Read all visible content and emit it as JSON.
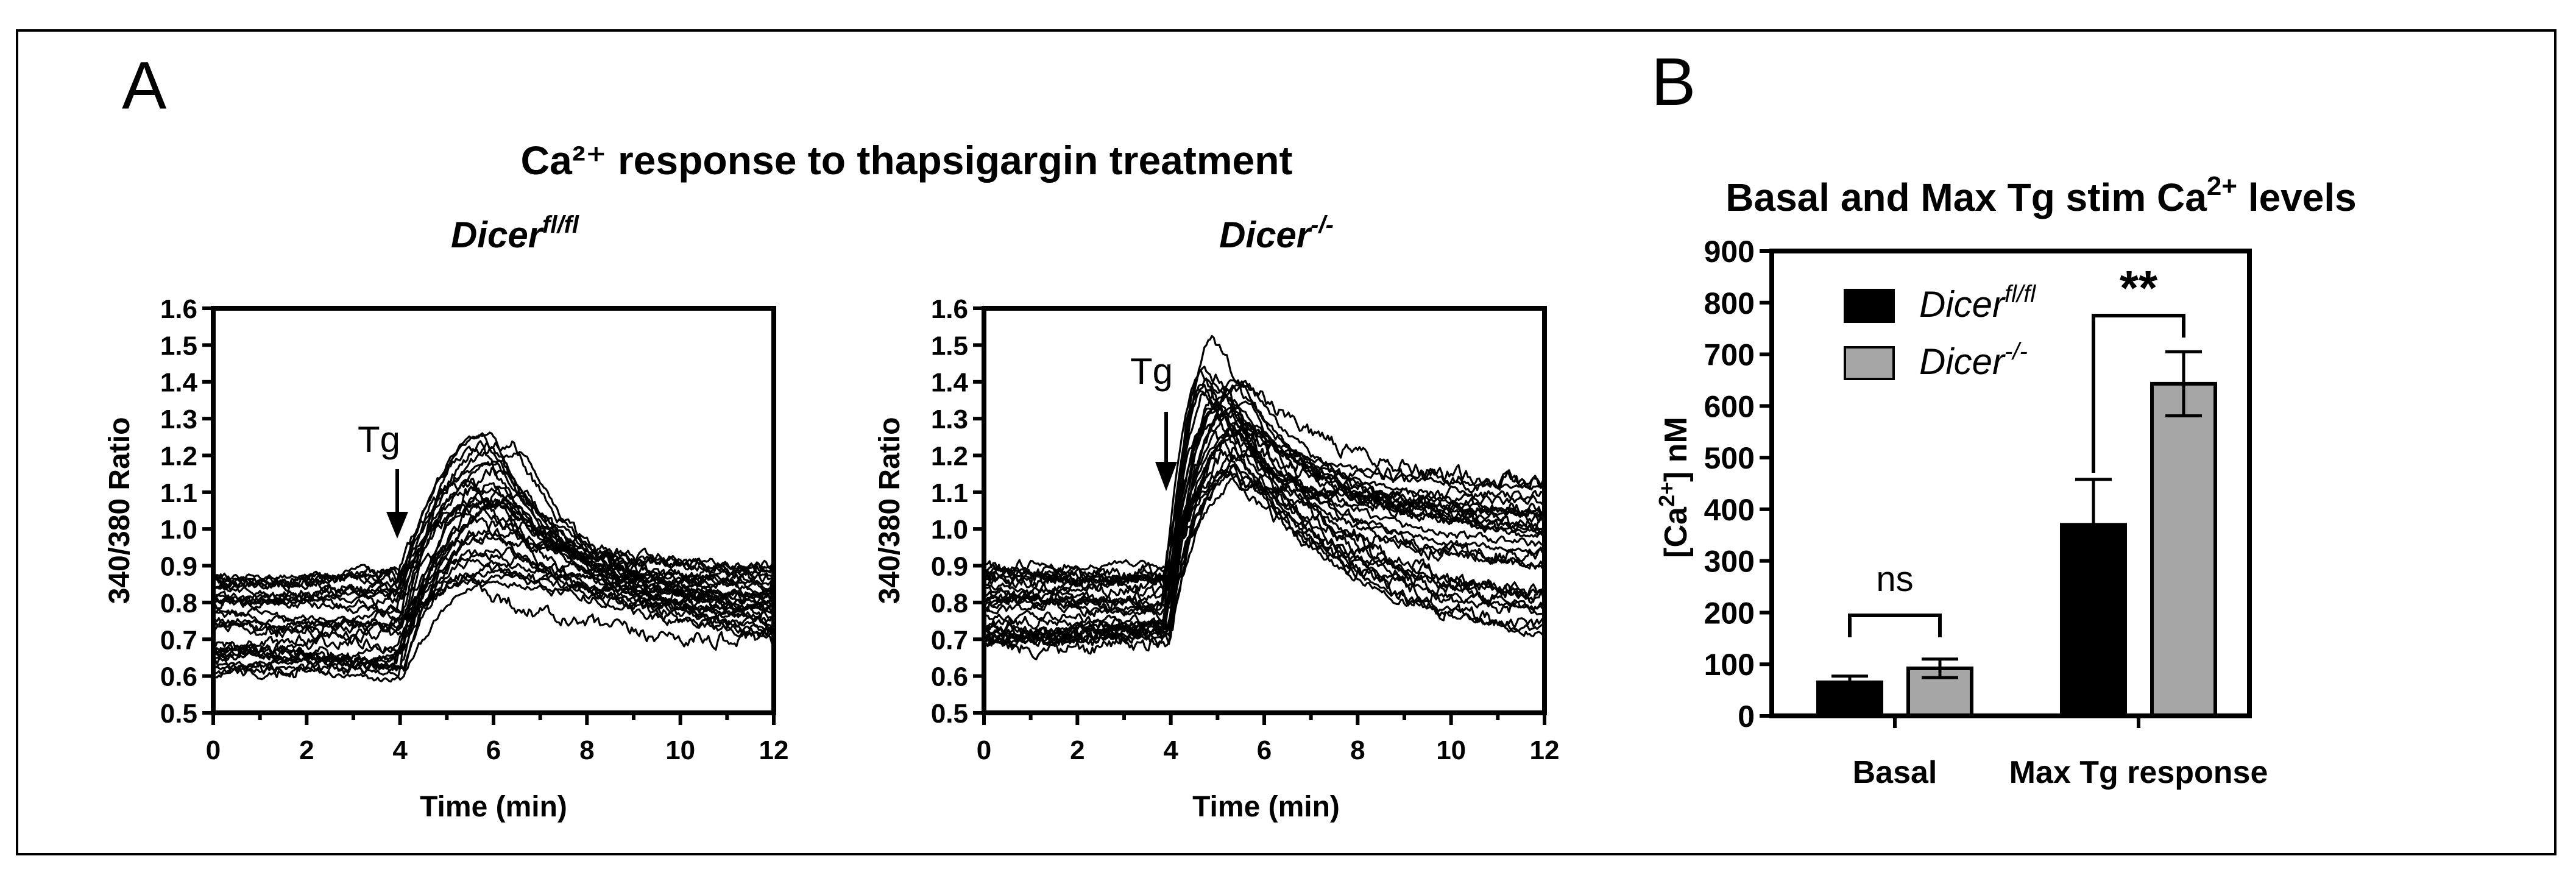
{
  "figure": {
    "panel_a_letter": "A",
    "panel_b_letter": "B",
    "panel_a_title": "Ca²⁺ response to thapsigargin treatment"
  },
  "chart_data": [
    {
      "id": "traces-fl",
      "type": "line",
      "title_main": "Dicer",
      "title_sup": "fl/fl",
      "xlabel": "Time (min)",
      "ylabel": "340/380 Ratio",
      "xlim": [
        0,
        12
      ],
      "ylim": [
        0.5,
        1.6
      ],
      "xticks": [
        0,
        2,
        4,
        6,
        8,
        10,
        12
      ],
      "yticks": [
        0.5,
        0.6,
        0.7,
        0.8,
        0.9,
        1.0,
        1.1,
        1.2,
        1.3,
        1.4,
        1.5,
        1.6
      ],
      "ytick_labels": [
        "0.5",
        "0.6",
        "0.7",
        "0.8",
        "0.9",
        "1.0",
        "1.1",
        "1.2",
        "1.3",
        "1.4",
        "1.5",
        "1.6"
      ],
      "annotation": {
        "text": "Tg",
        "x": 4.0
      },
      "n_traces": 30,
      "trace_model": {
        "t_stim": 4.0,
        "baseline_range": [
          0.6,
          0.87
        ],
        "peak_range": [
          0.85,
          1.27
        ],
        "peak_time_range": [
          5.4,
          6.8
        ],
        "end_range": [
          0.69,
          0.9
        ]
      }
    },
    {
      "id": "traces-ko",
      "type": "line",
      "title_main": "Dicer",
      "title_sup": "-/-",
      "xlabel": "Time (min)",
      "ylabel": "340/380 Ratio",
      "xlim": [
        0,
        12
      ],
      "ylim": [
        0.5,
        1.6
      ],
      "xticks": [
        0,
        2,
        4,
        6,
        8,
        10,
        12
      ],
      "yticks": [
        0.5,
        0.6,
        0.7,
        0.8,
        0.9,
        1.0,
        1.1,
        1.2,
        1.3,
        1.4,
        1.5,
        1.6
      ],
      "ytick_labels": [
        "0.5",
        "0.6",
        "0.7",
        "0.8",
        "0.9",
        "1.0",
        "1.1",
        "1.2",
        "1.3",
        "1.4",
        "1.5",
        "1.6"
      ],
      "annotation": {
        "text": "Tg",
        "x": 3.9
      },
      "n_traces": 30,
      "trace_model": {
        "t_stim": 3.9,
        "baseline_range": [
          0.68,
          0.9
        ],
        "peak_range": [
          1.12,
          1.52
        ],
        "peak_time_range": [
          4.6,
          5.8
        ],
        "end_range": [
          0.71,
          1.13
        ]
      }
    },
    {
      "id": "bars",
      "type": "bar",
      "title": "Basal and Max Tg stim Ca",
      "title_sup": "2+",
      "title_tail": " levels",
      "ylabel_pre": "[Ca",
      "ylabel_sup": "2+",
      "ylabel_post": "] nM",
      "categories": [
        "Basal",
        "Max Tg response"
      ],
      "ylim": [
        0,
        900
      ],
      "yticks": [
        0,
        100,
        200,
        300,
        400,
        500,
        600,
        700,
        800,
        900
      ],
      "series": [
        {
          "name": "Dicer",
          "name_sup": "fl/fl",
          "color": "#000000",
          "values": [
            65,
            370
          ],
          "errors": [
            12,
            88
          ]
        },
        {
          "name": "Dicer",
          "name_sup": "-/-",
          "color": "#a6a6a6",
          "values": [
            92,
            643
          ],
          "errors": [
            18,
            62
          ]
        }
      ],
      "significance": [
        {
          "category": "Basal",
          "label": "ns"
        },
        {
          "category": "Max Tg response",
          "label": "**"
        }
      ]
    }
  ]
}
